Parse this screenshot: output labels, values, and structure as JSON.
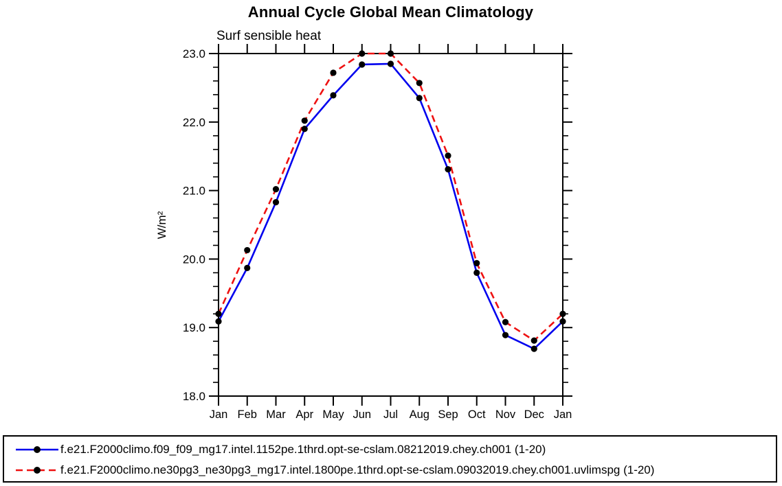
{
  "title": "Annual Cycle Global Mean Climatology",
  "subtitle": "Surf sensible heat",
  "chart_data": {
    "type": "line",
    "title": "Annual Cycle Global Mean Climatology",
    "subtitle": "Surf sensible heat",
    "xlabel": "",
    "ylabel": "W/m²",
    "x_categories": [
      "Jan",
      "Feb",
      "Mar",
      "Apr",
      "May",
      "Jun",
      "Jul",
      "Aug",
      "Sep",
      "Oct",
      "Nov",
      "Dec",
      "Jan"
    ],
    "ylim": [
      18.0,
      23.0
    ],
    "y_major_step": 1.0,
    "y_minor_step": 0.2,
    "y_tick_labels": [
      "18.0",
      "19.0",
      "20.0",
      "21.0",
      "22.0",
      "23.0"
    ],
    "grid": false,
    "legend_position": "bottom",
    "axis_color": "#000000",
    "marker": "filled-circle",
    "marker_color": "#000000",
    "series": [
      {
        "name": "f.e21.F2000climo.f09_f09_mg17.intel.1152pe.1thrd.opt-se-cslam.08212019.chey.ch001 (1-20)",
        "color": "#0000ee",
        "style": "solid",
        "dash": "none",
        "values": [
          19.09,
          19.87,
          20.83,
          21.9,
          22.39,
          22.84,
          22.85,
          22.35,
          21.31,
          19.8,
          18.89,
          18.69,
          19.09
        ]
      },
      {
        "name": "f.e21.F2000climo.ne30pg3_ne30pg3_mg17.intel.1800pe.1thrd.opt-se-cslam.09032019.chey.ch001.uvlimspg (1-20)",
        "color": "#ee1111",
        "style": "dashed",
        "dash": "10,6",
        "values": [
          19.2,
          20.13,
          21.02,
          22.02,
          22.72,
          23.0,
          23.0,
          22.57,
          21.51,
          19.94,
          19.08,
          18.81,
          19.2
        ]
      }
    ]
  }
}
